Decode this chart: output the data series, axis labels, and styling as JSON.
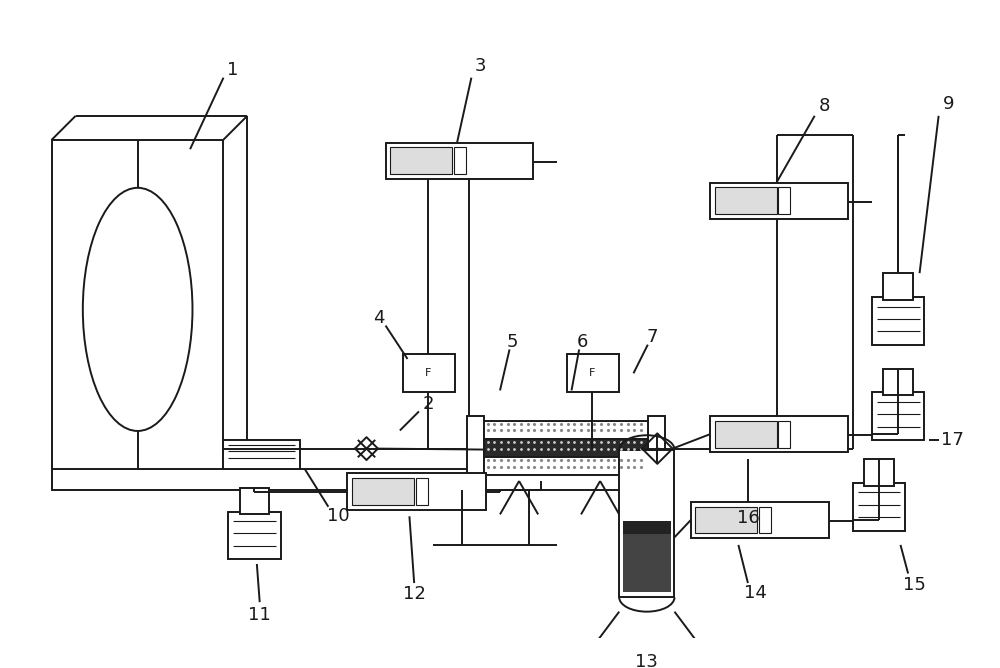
{
  "bg_color": "#ffffff",
  "line_color": "#1a1a1a",
  "figure_width": 10.0,
  "figure_height": 6.68,
  "dpi": 100
}
